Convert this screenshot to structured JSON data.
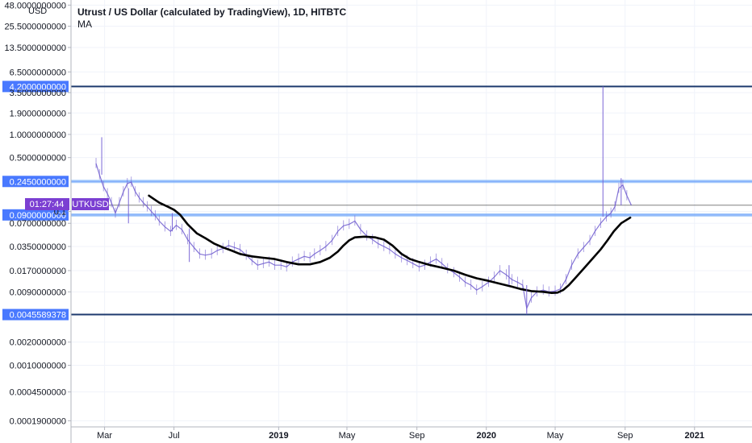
{
  "chart_data": {
    "type": "line",
    "title": "Utrust / US Dollar (calculated by TradingView), 1D, HITBTC",
    "indicator_label": "MA",
    "currency_label": "USD",
    "y_scale": "log",
    "ylim": [
      0.00017,
      52
    ],
    "xlim": [
      "2018-01-01",
      "2021-04-12"
    ],
    "y_tick_labels": [
      {
        "value": 48.0,
        "label": "48.0000000000"
      },
      {
        "value": 25.5,
        "label": "25.5000000000"
      },
      {
        "value": 13.5,
        "label": "13.5000000000"
      },
      {
        "value": 6.5,
        "label": "6.5000000000"
      },
      {
        "value": 3.5,
        "label": "3.5000000000"
      },
      {
        "value": 1.9,
        "label": "1.9000000000"
      },
      {
        "value": 1.0,
        "label": "1.0000000000"
      },
      {
        "value": 0.5,
        "label": "0.5000000000"
      },
      {
        "value": 0.1,
        "label": "0.1"
      },
      {
        "value": 0.07,
        "label": "0.0700000000"
      },
      {
        "value": 0.035,
        "label": "0.0350000000"
      },
      {
        "value": 0.017,
        "label": "0.0170000000"
      },
      {
        "value": 0.009,
        "label": "0.0090000000"
      },
      {
        "value": 0.002,
        "label": "0.0020000000"
      },
      {
        "value": 0.001,
        "label": "0.0010000000"
      },
      {
        "value": 0.00045,
        "label": "0.0004500000"
      },
      {
        "value": 0.00019,
        "label": "0.0001900000"
      }
    ],
    "x_tick_labels": [
      {
        "date": "2018-03-01",
        "label": "Mar",
        "bold": false
      },
      {
        "date": "2018-07-01",
        "label": "Jul",
        "bold": false
      },
      {
        "date": "2019-01-01",
        "label": "2019",
        "bold": true
      },
      {
        "date": "2019-05-01",
        "label": "May",
        "bold": false
      },
      {
        "date": "2019-09-01",
        "label": "Sep",
        "bold": false
      },
      {
        "date": "2020-01-01",
        "label": "2020",
        "bold": true
      },
      {
        "date": "2020-05-01",
        "label": "May",
        "bold": false
      },
      {
        "date": "2020-09-01",
        "label": "Sep",
        "bold": false
      },
      {
        "date": "2021-01-01",
        "label": "2021",
        "bold": true
      }
    ],
    "horizontal_levels": [
      {
        "value": 4.2,
        "label": "4.2000000000",
        "style": "dark"
      },
      {
        "value": 0.245,
        "label": "0.2450000000",
        "style": "light"
      },
      {
        "value": 0.09,
        "label": "0.0900000000",
        "style": "light"
      },
      {
        "value": 0.0045589378,
        "label": "0.0045589378",
        "style": "dark"
      }
    ],
    "last_price": {
      "value": 0.12,
      "countdown": "01:27:44",
      "symbol": "UTKUSD"
    },
    "series": [
      {
        "style": "price",
        "color": "#6f5ccf",
        "points": [
          [
            "2018-02-14",
            0.42
          ],
          [
            "2018-02-20",
            0.3
          ],
          [
            "2018-02-27",
            0.21
          ],
          [
            "2018-03-06",
            0.17
          ],
          [
            "2018-03-13",
            0.13
          ],
          [
            "2018-03-20",
            0.095
          ],
          [
            "2018-03-27",
            0.13
          ],
          [
            "2018-04-03",
            0.18
          ],
          [
            "2018-04-10",
            0.23
          ],
          [
            "2018-04-17",
            0.24
          ],
          [
            "2018-04-24",
            0.18
          ],
          [
            "2018-05-01",
            0.15
          ],
          [
            "2018-05-08",
            0.13
          ],
          [
            "2018-05-15",
            0.115
          ],
          [
            "2018-05-22",
            0.1
          ],
          [
            "2018-05-29",
            0.088
          ],
          [
            "2018-06-05",
            0.075
          ],
          [
            "2018-06-15",
            0.063
          ],
          [
            "2018-06-25",
            0.055
          ],
          [
            "2018-07-05",
            0.066
          ],
          [
            "2018-07-15",
            0.058
          ],
          [
            "2018-07-25",
            0.043
          ],
          [
            "2018-08-05",
            0.034
          ],
          [
            "2018-08-15",
            0.028
          ],
          [
            "2018-08-25",
            0.027
          ],
          [
            "2018-09-05",
            0.028
          ],
          [
            "2018-09-15",
            0.031
          ],
          [
            "2018-09-25",
            0.033
          ],
          [
            "2018-10-05",
            0.036
          ],
          [
            "2018-10-15",
            0.034
          ],
          [
            "2018-10-25",
            0.032
          ],
          [
            "2018-11-05",
            0.027
          ],
          [
            "2018-11-15",
            0.023
          ],
          [
            "2018-11-25",
            0.02
          ],
          [
            "2018-12-05",
            0.021
          ],
          [
            "2018-12-15",
            0.022
          ],
          [
            "2018-12-25",
            0.02
          ],
          [
            "2019-01-05",
            0.02
          ],
          [
            "2019-01-15",
            0.019
          ],
          [
            "2019-01-25",
            0.022
          ],
          [
            "2019-02-05",
            0.024
          ],
          [
            "2019-02-15",
            0.026
          ],
          [
            "2019-02-25",
            0.025
          ],
          [
            "2019-03-05",
            0.028
          ],
          [
            "2019-03-15",
            0.031
          ],
          [
            "2019-03-25",
            0.035
          ],
          [
            "2019-04-05",
            0.042
          ],
          [
            "2019-04-15",
            0.055
          ],
          [
            "2019-04-25",
            0.065
          ],
          [
            "2019-05-05",
            0.068
          ],
          [
            "2019-05-15",
            0.075
          ],
          [
            "2019-05-25",
            0.058
          ],
          [
            "2019-06-05",
            0.048
          ],
          [
            "2019-06-15",
            0.043
          ],
          [
            "2019-06-25",
            0.038
          ],
          [
            "2019-07-05",
            0.035
          ],
          [
            "2019-07-15",
            0.032
          ],
          [
            "2019-07-25",
            0.028
          ],
          [
            "2019-08-05",
            0.025
          ],
          [
            "2019-08-15",
            0.023
          ],
          [
            "2019-08-25",
            0.021
          ],
          [
            "2019-09-05",
            0.019
          ],
          [
            "2019-09-15",
            0.02
          ],
          [
            "2019-09-25",
            0.022
          ],
          [
            "2019-10-05",
            0.024
          ],
          [
            "2019-10-15",
            0.021
          ],
          [
            "2019-10-25",
            0.018
          ],
          [
            "2019-11-05",
            0.016
          ],
          [
            "2019-11-15",
            0.014
          ],
          [
            "2019-11-25",
            0.012
          ],
          [
            "2019-12-05",
            0.011
          ],
          [
            "2019-12-15",
            0.0095
          ],
          [
            "2019-12-25",
            0.0105
          ],
          [
            "2020-01-05",
            0.012
          ],
          [
            "2020-01-15",
            0.014
          ],
          [
            "2020-01-25",
            0.017
          ],
          [
            "2020-02-05",
            0.015
          ],
          [
            "2020-02-15",
            0.013
          ],
          [
            "2020-02-25",
            0.012
          ],
          [
            "2020-03-05",
            0.011
          ],
          [
            "2020-03-12",
            0.0055
          ],
          [
            "2020-03-20",
            0.0075
          ],
          [
            "2020-03-30",
            0.009
          ],
          [
            "2020-04-10",
            0.0095
          ],
          [
            "2020-04-20",
            0.009
          ],
          [
            "2020-05-01",
            0.0092
          ],
          [
            "2020-05-10",
            0.0098
          ],
          [
            "2020-05-20",
            0.013
          ],
          [
            "2020-05-30",
            0.02
          ],
          [
            "2020-06-10",
            0.028
          ],
          [
            "2020-06-20",
            0.034
          ],
          [
            "2020-07-01",
            0.042
          ],
          [
            "2020-07-10",
            0.055
          ],
          [
            "2020-07-20",
            0.07
          ],
          [
            "2020-07-30",
            0.085
          ],
          [
            "2020-08-07",
            0.095
          ],
          [
            "2020-08-14",
            0.115
          ],
          [
            "2020-08-21",
            0.2
          ],
          [
            "2020-08-28",
            0.22
          ],
          [
            "2020-09-04",
            0.16
          ],
          [
            "2020-09-12",
            0.12
          ]
        ]
      },
      {
        "style": "ma",
        "color": "#000000",
        "points": [
          [
            "2018-05-18",
            0.16
          ],
          [
            "2018-06-05",
            0.13
          ],
          [
            "2018-06-20",
            0.115
          ],
          [
            "2018-07-01",
            0.105
          ],
          [
            "2018-07-12",
            0.09
          ],
          [
            "2018-07-25",
            0.068
          ],
          [
            "2018-08-10",
            0.052
          ],
          [
            "2018-08-25",
            0.045
          ],
          [
            "2018-09-10",
            0.038
          ],
          [
            "2018-09-25",
            0.034
          ],
          [
            "2018-10-10",
            0.031
          ],
          [
            "2018-10-25",
            0.028
          ],
          [
            "2018-11-15",
            0.026
          ],
          [
            "2018-12-05",
            0.025
          ],
          [
            "2018-12-25",
            0.024
          ],
          [
            "2019-01-15",
            0.022
          ],
          [
            "2019-02-05",
            0.0205
          ],
          [
            "2019-02-25",
            0.0205
          ],
          [
            "2019-03-15",
            0.022
          ],
          [
            "2019-04-01",
            0.025
          ],
          [
            "2019-04-15",
            0.03
          ],
          [
            "2019-04-25",
            0.036
          ],
          [
            "2019-05-05",
            0.042
          ],
          [
            "2019-05-15",
            0.046
          ],
          [
            "2019-06-01",
            0.047
          ],
          [
            "2019-06-20",
            0.046
          ],
          [
            "2019-07-05",
            0.043
          ],
          [
            "2019-07-20",
            0.036
          ],
          [
            "2019-08-05",
            0.028
          ],
          [
            "2019-08-20",
            0.024
          ],
          [
            "2019-09-05",
            0.022
          ],
          [
            "2019-09-25",
            0.02
          ],
          [
            "2019-10-15",
            0.0185
          ],
          [
            "2019-11-05",
            0.017
          ],
          [
            "2019-11-25",
            0.015
          ],
          [
            "2019-12-15",
            0.0135
          ],
          [
            "2020-01-05",
            0.0125
          ],
          [
            "2020-01-25",
            0.0115
          ],
          [
            "2020-02-15",
            0.0105
          ],
          [
            "2020-03-01",
            0.0098
          ],
          [
            "2020-03-20",
            0.0092
          ],
          [
            "2020-04-10",
            0.009
          ],
          [
            "2020-04-25",
            0.0087
          ],
          [
            "2020-05-05",
            0.0088
          ],
          [
            "2020-05-15",
            0.0095
          ],
          [
            "2020-05-25",
            0.011
          ],
          [
            "2020-06-05",
            0.0135
          ],
          [
            "2020-06-20",
            0.018
          ],
          [
            "2020-07-05",
            0.024
          ],
          [
            "2020-07-20",
            0.032
          ],
          [
            "2020-08-01",
            0.042
          ],
          [
            "2020-08-12",
            0.055
          ],
          [
            "2020-08-25",
            0.07
          ],
          [
            "2020-09-10",
            0.083
          ]
        ]
      }
    ],
    "wicks": [
      {
        "date": "2018-02-24",
        "low": 0.3,
        "high": 0.92
      },
      {
        "date": "2018-06-28",
        "low": 0.055,
        "high": 0.095
      },
      {
        "date": "2018-07-28",
        "low": 0.022,
        "high": 0.06
      },
      {
        "date": "2018-04-12",
        "low": 0.07,
        "high": 0.2
      },
      {
        "date": "2020-02-10",
        "low": 0.011,
        "high": 0.02
      },
      {
        "date": "2020-03-12",
        "low": 0.0046,
        "high": 0.011
      },
      {
        "date": "2020-07-24",
        "low": 0.085,
        "high": 4.2
      },
      {
        "date": "2020-08-25",
        "low": 0.12,
        "high": 0.27
      }
    ]
  }
}
